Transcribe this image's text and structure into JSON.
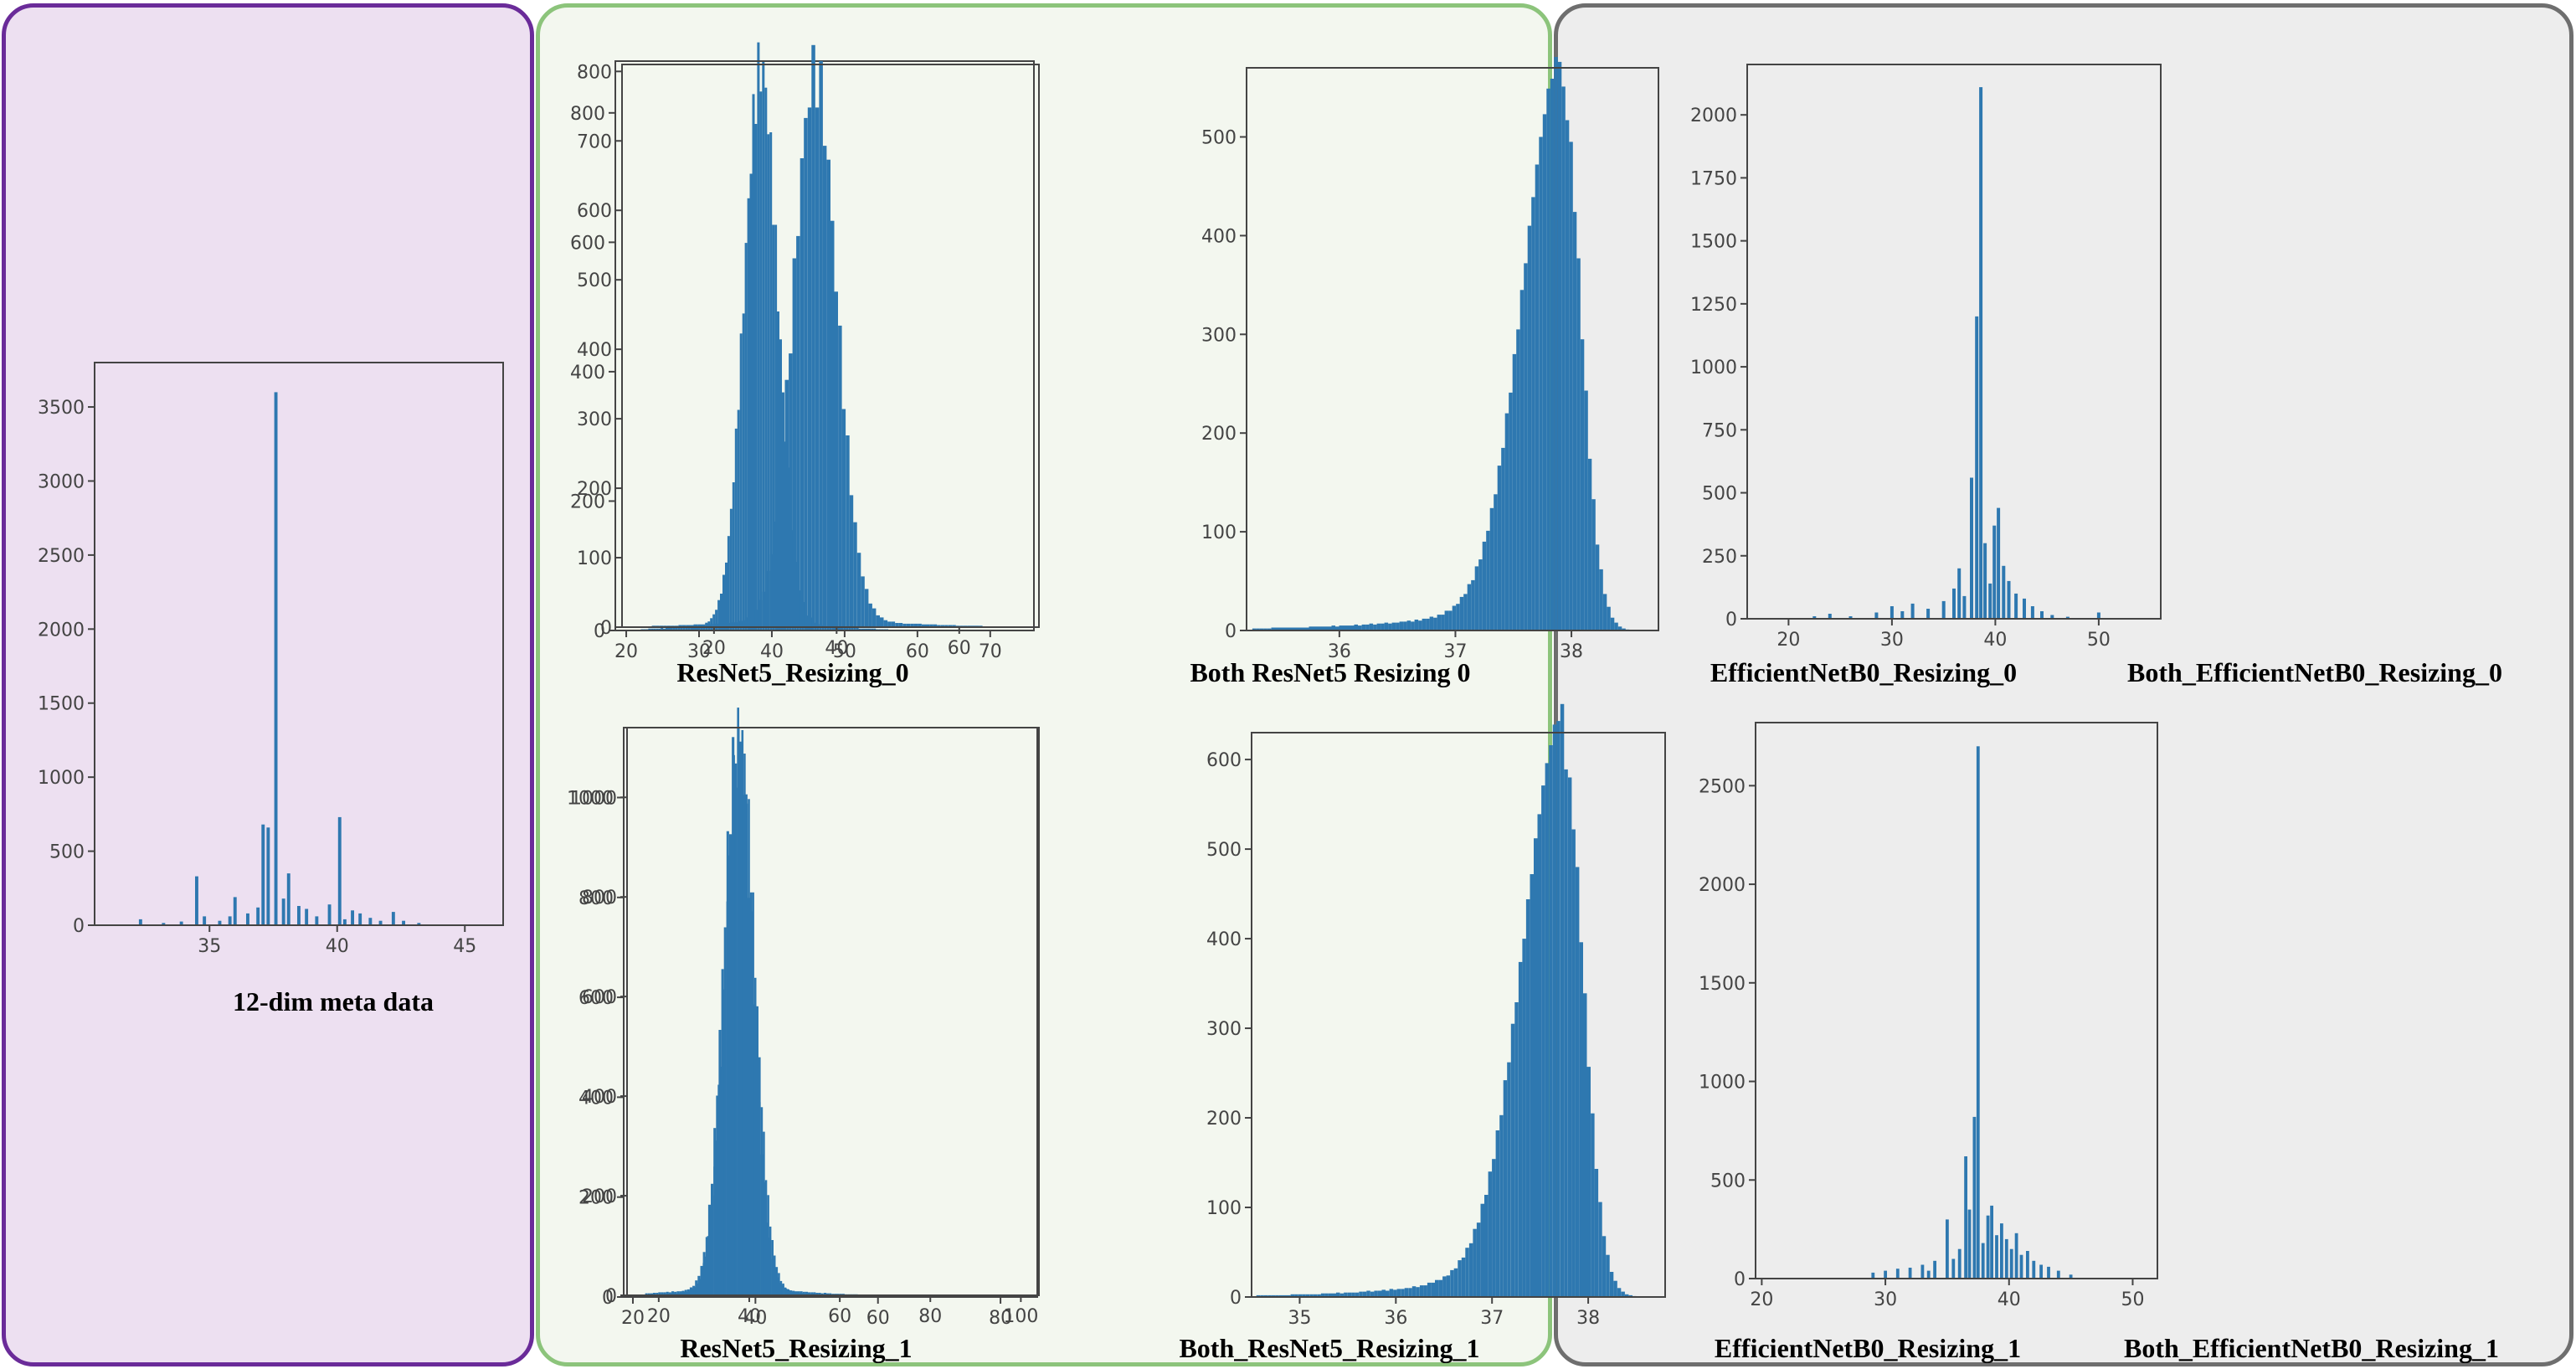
{
  "colors": {
    "bar": "#2e78b0",
    "left_panel_fill": "#ede0f1",
    "left_panel_border": "#6a2b99",
    "mid_panel_fill": "#f3f7ef",
    "mid_panel_border": "#8cc47b",
    "right_panel_fill": "#ededed",
    "right_panel_border": "#6e6e6e"
  },
  "chart_data": [
    {
      "id": "meta",
      "type": "histogram",
      "title": "12-dim meta data",
      "xlim": [
        30.5,
        46.5
      ],
      "ylim": [
        0,
        3800
      ],
      "xticks": [
        35,
        40,
        45
      ],
      "yticks": [
        0,
        500,
        1000,
        1500,
        2000,
        2500,
        3000,
        3500
      ],
      "grid": false,
      "bins": [
        [
          32.3,
          40
        ],
        [
          33.2,
          15
        ],
        [
          33.9,
          25
        ],
        [
          34.5,
          330
        ],
        [
          34.8,
          60
        ],
        [
          35.4,
          30
        ],
        [
          35.8,
          60
        ],
        [
          36.0,
          190
        ],
        [
          36.5,
          80
        ],
        [
          36.9,
          120
        ],
        [
          37.1,
          680
        ],
        [
          37.3,
          660
        ],
        [
          37.6,
          3600
        ],
        [
          37.9,
          180
        ],
        [
          38.1,
          350
        ],
        [
          38.5,
          130
        ],
        [
          38.8,
          110
        ],
        [
          39.2,
          60
        ],
        [
          39.7,
          140
        ],
        [
          40.1,
          730
        ],
        [
          40.3,
          40
        ],
        [
          40.6,
          100
        ],
        [
          40.9,
          80
        ],
        [
          41.3,
          50
        ],
        [
          41.7,
          30
        ],
        [
          42.2,
          90
        ],
        [
          42.6,
          30
        ],
        [
          43.2,
          15
        ]
      ]
    },
    {
      "id": "r50",
      "type": "histogram",
      "title": "ResNet5_Resizing_0",
      "xlim": [
        18.5,
        76
      ],
      "ylim": [
        0,
        880
      ],
      "xticks": [
        20,
        30,
        40,
        50,
        60,
        70
      ],
      "yticks": [
        0,
        200,
        400,
        600,
        800
      ],
      "grid": false,
      "dist": {
        "kind": "normal",
        "mu": 38.5,
        "sigma": 2.3,
        "peak": 860,
        "from": 22,
        "to": 56
      }
    },
    {
      "id": "br50",
      "type": "histogram",
      "title": "Both  ResNet5  Resizing  0",
      "xlim": [
        5,
        73
      ],
      "ylim": [
        0,
        810
      ],
      "xticks": [
        20,
        40,
        60
      ],
      "yticks": [
        0,
        100,
        200,
        300,
        400,
        500,
        600,
        700,
        800
      ],
      "grid": false,
      "dist": {
        "kind": "normal",
        "mu": 36.5,
        "sigma": 3.5,
        "peak": 790,
        "from": 8,
        "to": 70
      }
    },
    {
      "id": "r51",
      "type": "histogram",
      "title": "ResNet5_Resizing_1",
      "xlim": [
        18.5,
        86
      ],
      "ylim": [
        0,
        1140
      ],
      "xticks": [
        20,
        40,
        60,
        80
      ],
      "yticks": [
        0,
        200,
        400,
        600,
        800,
        1000
      ],
      "grid": false,
      "dist": {
        "kind": "normal",
        "mu": 37.5,
        "sigma": 2.4,
        "peak": 1115,
        "from": 23,
        "to": 58
      }
    },
    {
      "id": "br51",
      "type": "histogram",
      "title": "Both_ResNet5_Resizing_1",
      "xlim": [
        13,
        104
      ],
      "ylim": [
        0,
        1140
      ],
      "xticks": [
        20,
        40,
        60,
        80,
        100
      ],
      "yticks": [
        0,
        200,
        400,
        600,
        800,
        1000
      ],
      "grid": false,
      "dist": {
        "kind": "normal",
        "mu": 37.5,
        "sigma": 3.2,
        "peak": 1110,
        "from": 17,
        "to": 75
      }
    },
    {
      "id": "e0",
      "type": "histogram",
      "title": "EfficientNetB0_Resizing_0",
      "xlim": [
        35.2,
        38.75
      ],
      "ylim": [
        0,
        570
      ],
      "xticks": [
        36,
        37,
        38
      ],
      "yticks": [
        0,
        100,
        200,
        300,
        400,
        500
      ],
      "grid": false,
      "dist": {
        "kind": "leftskew",
        "mu": 37.92,
        "sigma_left": 0.33,
        "sigma_right": 0.16,
        "peak": 545,
        "tail": 4,
        "from": 35.25,
        "to": 38.5
      }
    },
    {
      "id": "be0",
      "type": "histogram",
      "title": "Both_EfficientNetB0_Resizing_0",
      "xlim": [
        16,
        56
      ],
      "ylim": [
        0,
        2200
      ],
      "xticks": [
        20,
        30,
        40,
        50
      ],
      "yticks": [
        0,
        250,
        500,
        750,
        1000,
        1250,
        1500,
        1750,
        2000
      ],
      "grid": false,
      "bins": [
        [
          22.5,
          10
        ],
        [
          24.0,
          20
        ],
        [
          26.0,
          10
        ],
        [
          28.5,
          25
        ],
        [
          30.0,
          50
        ],
        [
          31.0,
          30
        ],
        [
          32.0,
          60
        ],
        [
          33.5,
          40
        ],
        [
          35.0,
          70
        ],
        [
          36.0,
          120
        ],
        [
          36.5,
          200
        ],
        [
          37.0,
          90
        ],
        [
          37.7,
          560
        ],
        [
          38.2,
          1200
        ],
        [
          38.6,
          2110
        ],
        [
          39.0,
          300
        ],
        [
          39.5,
          140
        ],
        [
          39.9,
          370
        ],
        [
          40.3,
          440
        ],
        [
          40.8,
          210
        ],
        [
          41.3,
          150
        ],
        [
          42.0,
          100
        ],
        [
          42.8,
          80
        ],
        [
          43.6,
          50
        ],
        [
          44.5,
          30
        ],
        [
          45.5,
          15
        ],
        [
          47.0,
          8
        ],
        [
          50.0,
          25
        ]
      ]
    },
    {
      "id": "e1",
      "type": "histogram",
      "title": "EfficientNetB0_Resizing_1",
      "xlim": [
        34.5,
        38.8
      ],
      "ylim": [
        0,
        630
      ],
      "xticks": [
        35,
        36,
        37,
        38
      ],
      "yticks": [
        0,
        100,
        200,
        300,
        400,
        500,
        600
      ],
      "grid": false,
      "dist": {
        "kind": "leftskew",
        "mu": 37.75,
        "sigma_left": 0.42,
        "sigma_right": 0.2,
        "peak": 598,
        "tail": 6,
        "from": 34.55,
        "to": 38.5
      }
    },
    {
      "id": "be1",
      "type": "histogram",
      "title": "Both_EfficientNetB0_Resizing_1",
      "xlim": [
        19.5,
        52
      ],
      "ylim": [
        0,
        2820
      ],
      "xticks": [
        20,
        30,
        40,
        50
      ],
      "yticks": [
        0,
        500,
        1000,
        1500,
        2000,
        2500
      ],
      "grid": false,
      "bins": [
        [
          29.0,
          30
        ],
        [
          30.0,
          40
        ],
        [
          31.0,
          50
        ],
        [
          32.0,
          55
        ],
        [
          33.0,
          70
        ],
        [
          33.5,
          40
        ],
        [
          34.0,
          90
        ],
        [
          35.0,
          300
        ],
        [
          35.5,
          100
        ],
        [
          36.0,
          150
        ],
        [
          36.5,
          620
        ],
        [
          36.8,
          350
        ],
        [
          37.2,
          820
        ],
        [
          37.5,
          2700
        ],
        [
          37.9,
          180
        ],
        [
          38.3,
          320
        ],
        [
          38.6,
          370
        ],
        [
          39.0,
          220
        ],
        [
          39.4,
          280
        ],
        [
          39.8,
          200
        ],
        [
          40.2,
          150
        ],
        [
          40.6,
          230
        ],
        [
          41.0,
          120
        ],
        [
          41.5,
          140
        ],
        [
          42.0,
          90
        ],
        [
          42.6,
          70
        ],
        [
          43.2,
          60
        ],
        [
          44.0,
          40
        ],
        [
          45.0,
          20
        ]
      ]
    }
  ]
}
